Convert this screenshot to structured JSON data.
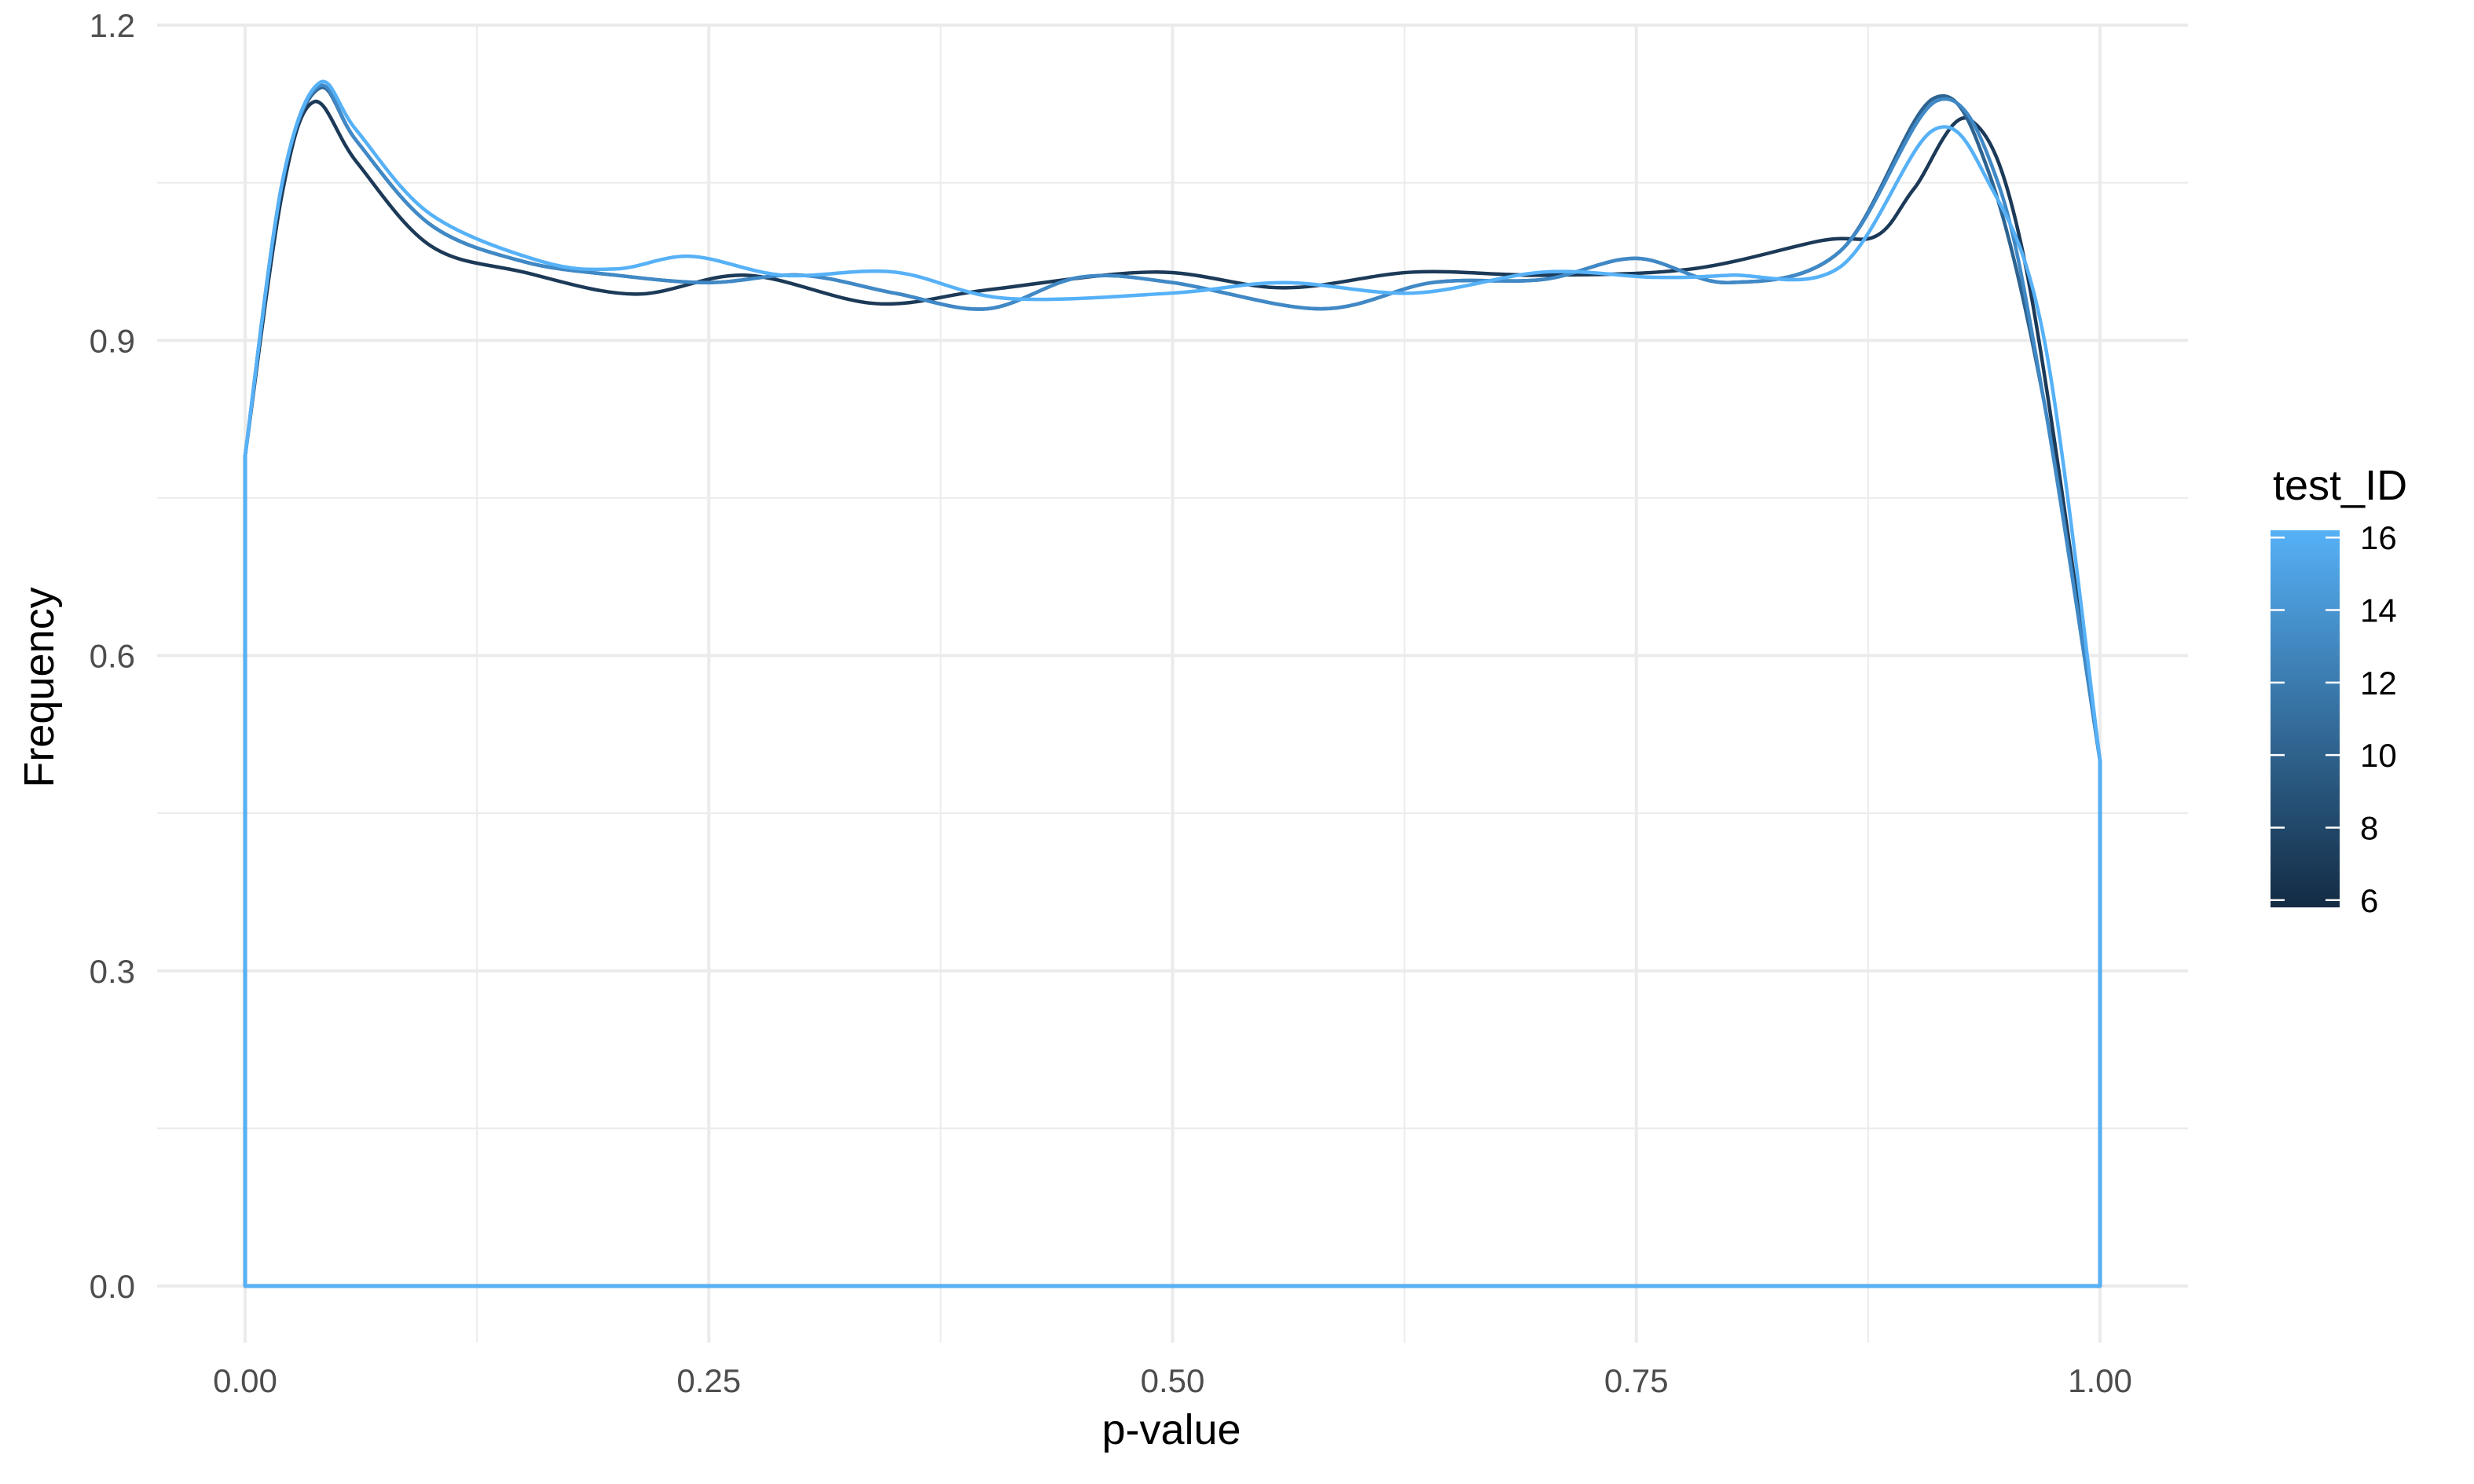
{
  "chart_data": {
    "type": "line",
    "subtype": "density (geom_density outline)",
    "title": "",
    "xlabel": "p-value",
    "ylabel": "Frequency",
    "xlim": [
      0,
      1
    ],
    "ylim": [
      0,
      1.2
    ],
    "x_ticks": [
      "0.00",
      "0.25",
      "0.50",
      "0.75",
      "1.00"
    ],
    "x_tick_values": [
      0,
      0.25,
      0.5,
      0.75,
      1.0
    ],
    "y_ticks": [
      "0.0",
      "0.3",
      "0.6",
      "0.9",
      "1.2"
    ],
    "y_tick_values": [
      0,
      0.3,
      0.6,
      0.9,
      1.2
    ],
    "grid": true,
    "legend": {
      "title": "test_ID",
      "type": "colorbar",
      "placement": "right",
      "labels": [
        "16",
        "14",
        "12",
        "10",
        "8",
        "6"
      ],
      "values": [
        16,
        14,
        12,
        10,
        8,
        6
      ],
      "range": [
        5.8,
        16.2
      ],
      "low_color": "#132B43",
      "high_color": "#56B1F7"
    },
    "series": [
      {
        "test_ID": 6,
        "color": "#1c3a58",
        "x": [
          0,
          0.02,
          0.037,
          0.06,
          0.1,
          0.15,
          0.21,
          0.27,
          0.34,
          0.4,
          0.49,
          0.56,
          0.63,
          0.7,
          0.78,
          0.85,
          0.88,
          0.9,
          0.93,
          0.96,
          1.0
        ],
        "y": [
          0.79,
          1.04,
          1.127,
          1.07,
          0.99,
          0.965,
          0.944,
          0.962,
          0.935,
          0.948,
          0.965,
          0.95,
          0.965,
          0.962,
          0.968,
          0.995,
          1.0,
          1.045,
          1.11,
          0.97,
          0.5
        ]
      },
      {
        "test_ID": 10,
        "color": "#2d6391",
        "x": [
          0,
          0.02,
          0.04,
          0.06,
          0.1,
          0.15,
          0.2,
          0.25,
          0.3,
          0.35,
          0.4,
          0.45,
          0.5,
          0.58,
          0.64,
          0.7,
          0.75,
          0.8,
          0.86,
          0.91,
          0.94,
          0.97,
          1.0
        ],
        "y": [
          0.79,
          1.05,
          1.14,
          1.09,
          1.01,
          0.975,
          0.962,
          0.955,
          0.962,
          0.945,
          0.93,
          0.96,
          0.955,
          0.93,
          0.955,
          0.958,
          0.978,
          0.955,
          0.985,
          1.13,
          1.06,
          0.84,
          0.5
        ]
      },
      {
        "test_ID": 13,
        "color": "#4089c6",
        "x": [
          0,
          0.02,
          0.04,
          0.06,
          0.1,
          0.15,
          0.2,
          0.25,
          0.3,
          0.35,
          0.4,
          0.45,
          0.5,
          0.58,
          0.64,
          0.7,
          0.75,
          0.8,
          0.86,
          0.912,
          0.945,
          0.97,
          1.0
        ],
        "y": [
          0.79,
          1.05,
          1.142,
          1.09,
          1.01,
          0.975,
          0.962,
          0.955,
          0.962,
          0.945,
          0.93,
          0.96,
          0.955,
          0.93,
          0.955,
          0.958,
          0.978,
          0.955,
          0.985,
          1.128,
          1.05,
          0.84,
          0.5
        ]
      },
      {
        "test_ID": 16,
        "color": "#56b1f7",
        "x": [
          0,
          0.02,
          0.04,
          0.06,
          0.1,
          0.16,
          0.2,
          0.24,
          0.29,
          0.35,
          0.41,
          0.5,
          0.56,
          0.63,
          0.7,
          0.76,
          0.8,
          0.86,
          0.91,
          0.94,
          0.97,
          1.0
        ],
        "y": [
          0.79,
          1.05,
          1.145,
          1.1,
          1.02,
          0.975,
          0.968,
          0.98,
          0.962,
          0.965,
          0.94,
          0.945,
          0.955,
          0.945,
          0.965,
          0.96,
          0.962,
          0.97,
          1.1,
          1.05,
          0.9,
          0.5
        ]
      }
    ]
  }
}
